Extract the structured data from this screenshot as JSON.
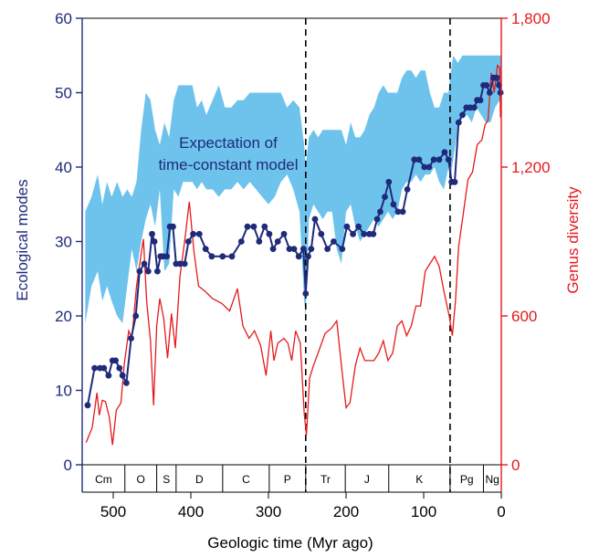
{
  "chart_data": {
    "type": "line",
    "xlabel": "Geologic time (Myr ago)",
    "ylabel_left": "Ecological modes",
    "ylabel_right": "Genus diversity",
    "x_reversed": true,
    "xlim": [
      540,
      0
    ],
    "ylim_left": [
      0,
      60
    ],
    "ylim_right": [
      0,
      1800
    ],
    "x_ticks": [
      500,
      400,
      300,
      200,
      100,
      0
    ],
    "y_ticks_left": [
      0,
      10,
      20,
      30,
      40,
      50,
      60
    ],
    "y_ticks_right": [
      0,
      600,
      1200,
      1800
    ],
    "y_tick_labels_right": [
      "0",
      "600",
      "1,200",
      "1,800"
    ],
    "grid": false,
    "annotation": "Expectation of time-constant model",
    "annotation_lines": [
      "Expectation of",
      "time-constant model"
    ],
    "mass_extinctions": [
      252,
      66
    ],
    "colors": {
      "modes": "#1f2a7a",
      "diversity": "#e41a1c",
      "band": "#6ec3ec",
      "left_axis": "#1f2a7a",
      "right_axis": "#e41a1c"
    },
    "periods": [
      {
        "label": "Cm",
        "start": 540,
        "end": 485
      },
      {
        "label": "O",
        "start": 485,
        "end": 444
      },
      {
        "label": "S",
        "start": 444,
        "end": 419
      },
      {
        "label": "D",
        "start": 419,
        "end": 359
      },
      {
        "label": "C",
        "start": 359,
        "end": 299
      },
      {
        "label": "P",
        "start": 299,
        "end": 252
      },
      {
        "label": "Tr",
        "start": 252,
        "end": 201
      },
      {
        "label": "J",
        "start": 201,
        "end": 145
      },
      {
        "label": "K",
        "start": 145,
        "end": 66
      },
      {
        "label": "Pg",
        "start": 66,
        "end": 23
      },
      {
        "label": "Ng",
        "start": 23,
        "end": 0
      }
    ],
    "series": [
      {
        "name": "Ecological modes",
        "axis": "left",
        "x": [
          533,
          524,
          517,
          512,
          506,
          501,
          497,
          492,
          488,
          483,
          477,
          471,
          466,
          460,
          455,
          450,
          447,
          443,
          439,
          436,
          431,
          427,
          423,
          419,
          414,
          408,
          403,
          397,
          389,
          381,
          373,
          359,
          347,
          335,
          327,
          319,
          312,
          305,
          299,
          294,
          288,
          280,
          273,
          267,
          261,
          255,
          252,
          249,
          245,
          240,
          232,
          224,
          216,
          205,
          199,
          191,
          184,
          177,
          170,
          165,
          160,
          156,
          150,
          145,
          139,
          133,
          127,
          121,
          112,
          106,
          99,
          93,
          87,
          80,
          73,
          68,
          64,
          60,
          55,
          50,
          45,
          40,
          35,
          31,
          27,
          23,
          19,
          15,
          10,
          6,
          3,
          1
        ],
        "y": [
          8,
          13,
          13,
          13,
          12,
          14,
          14,
          13,
          12,
          11,
          17,
          20,
          26,
          27,
          26,
          31,
          30,
          26,
          28,
          28,
          28,
          32,
          32,
          27,
          27,
          27,
          30,
          31,
          31,
          29,
          28,
          28,
          28,
          30,
          32,
          32,
          30,
          32,
          31,
          29,
          30,
          31,
          29,
          29,
          28,
          29,
          23,
          28,
          29,
          33,
          31,
          29,
          30,
          29,
          32,
          31,
          32,
          31,
          31,
          31,
          33,
          34,
          36,
          38,
          35,
          34,
          34,
          37,
          41,
          41,
          40,
          40,
          41,
          41,
          42,
          41,
          38,
          38,
          46,
          47,
          48,
          48,
          48,
          49,
          49,
          51,
          51,
          50,
          52,
          52,
          51,
          50
        ]
      },
      {
        "name": "Genus diversity",
        "axis": "right",
        "x": [
          535,
          527,
          521,
          518,
          514,
          510,
          505,
          501,
          496,
          490,
          486,
          480,
          476,
          470,
          464,
          461,
          457,
          452,
          448,
          444,
          440,
          435,
          430,
          425,
          420,
          414,
          408,
          402,
          396,
          390,
          382,
          372,
          360,
          350,
          340,
          333,
          325,
          318,
          310,
          303,
          297,
          293,
          288,
          280,
          275,
          270,
          265,
          259,
          254,
          251,
          247,
          242,
          235,
          227,
          219,
          212,
          206,
          200,
          195,
          188,
          182,
          176,
          170,
          164,
          158,
          152,
          146,
          140,
          134,
          128,
          122,
          116,
          110,
          104,
          98,
          92,
          86,
          80,
          74,
          67,
          63,
          59,
          55,
          49,
          43,
          37,
          31,
          25,
          21,
          17,
          13,
          9,
          5,
          2,
          1
        ],
        "y": [
          90,
          150,
          290,
          200,
          260,
          255,
          190,
          80,
          220,
          250,
          400,
          540,
          510,
          720,
          850,
          910,
          660,
          500,
          240,
          560,
          670,
          590,
          430,
          610,
          470,
          760,
          900,
          1060,
          860,
          720,
          700,
          670,
          650,
          620,
          710,
          560,
          510,
          540,
          480,
          360,
          540,
          420,
          490,
          510,
          490,
          420,
          540,
          490,
          210,
          120,
          350,
          400,
          460,
          530,
          550,
          580,
          400,
          230,
          250,
          400,
          470,
          420,
          420,
          420,
          450,
          500,
          420,
          450,
          560,
          580,
          520,
          560,
          640,
          640,
          780,
          810,
          840,
          800,
          700,
          600,
          520,
          660,
          880,
          1010,
          1150,
          1180,
          1290,
          1310,
          1370,
          1390,
          1580,
          1500,
          1610,
          1600,
          1400
        ]
      },
      {
        "name": "",
        "axis": "left",
        "kind": "band",
        "x": [
          536,
          528,
          520,
          514,
          508,
          502,
          495,
          488,
          482,
          476,
          470,
          464,
          458,
          452,
          446,
          440,
          434,
          428,
          422,
          416,
          410,
          404,
          398,
          392,
          386,
          380,
          372,
          364,
          356,
          348,
          340,
          332,
          324,
          316,
          308,
          300,
          292,
          284,
          276,
          268,
          260,
          254,
          252,
          248,
          242,
          236,
          230,
          224,
          218,
          212,
          206,
          200,
          194,
          188,
          182,
          176,
          170,
          164,
          158,
          152,
          146,
          140,
          134,
          128,
          122,
          116,
          110,
          104,
          98,
          92,
          86,
          80,
          74,
          68,
          66,
          62,
          56,
          50,
          44,
          38,
          32,
          26,
          20,
          14,
          8,
          2,
          0
        ],
        "low": [
          19,
          24,
          26,
          22,
          24,
          22,
          20,
          19,
          24,
          29,
          26,
          30,
          33,
          35,
          32,
          37,
          26,
          27,
          37,
          36,
          38,
          38,
          38,
          37,
          38,
          37,
          37,
          36,
          37,
          37,
          38,
          37,
          38,
          37,
          36,
          35,
          36,
          38,
          39,
          37,
          34,
          22,
          20,
          33,
          35,
          34,
          33,
          34,
          34,
          29,
          27,
          34,
          35,
          32,
          30,
          31,
          32,
          33,
          32,
          33,
          34,
          33,
          34,
          37,
          38,
          38,
          39,
          38,
          39,
          39,
          40,
          38,
          37,
          40,
          38,
          41,
          45,
          47,
          47,
          46,
          48,
          47,
          46,
          46,
          48,
          49,
          49
        ],
        "high": [
          34,
          36,
          39,
          35,
          38,
          36,
          38,
          36,
          37,
          36,
          38,
          45,
          50,
          49,
          45,
          43,
          46,
          44,
          49,
          51,
          51,
          51,
          51,
          48,
          49,
          47,
          49,
          51,
          48,
          48,
          49,
          49,
          50,
          50,
          50,
          50,
          50,
          50,
          48,
          49,
          48,
          43,
          40,
          44,
          45,
          44,
          45,
          45,
          45,
          45,
          45,
          43,
          46,
          44,
          44,
          45,
          47,
          48,
          50,
          51,
          50,
          50,
          50,
          52,
          53,
          53,
          52,
          53,
          53,
          50,
          48,
          48,
          50,
          50,
          52,
          55,
          54,
          55,
          55,
          55,
          55,
          55,
          55,
          55,
          55,
          55,
          55
        ]
      }
    ]
  }
}
